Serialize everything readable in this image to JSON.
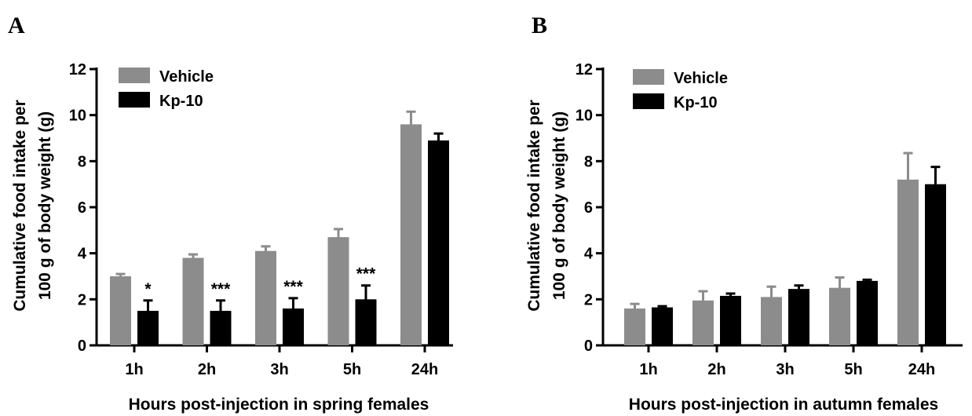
{
  "chart_data": [
    {
      "type": "bar",
      "panel_label": "A",
      "xlabel": "Hours post-injection in spring females",
      "ylabel_lines": [
        "Cumulative food intake per",
        "100 g of body weight (g)"
      ],
      "ylim": [
        0,
        12
      ],
      "yticks": [
        0,
        2,
        4,
        6,
        8,
        10,
        12
      ],
      "categories": [
        "1h",
        "2h",
        "3h",
        "5h",
        "24h"
      ],
      "legend_position": "top-left",
      "series": [
        {
          "name": "Vehicle",
          "color": "#8c8c8c",
          "values": [
            3.0,
            3.8,
            4.1,
            4.7,
            9.6
          ],
          "errors": [
            0.1,
            0.15,
            0.2,
            0.35,
            0.55
          ]
        },
        {
          "name": "Kp-10",
          "color": "#000000",
          "values": [
            1.5,
            1.5,
            1.6,
            2.0,
            8.9
          ],
          "errors": [
            0.45,
            0.45,
            0.45,
            0.6,
            0.3
          ]
        }
      ],
      "annotations": [
        "*",
        "***",
        "***",
        "***",
        ""
      ]
    },
    {
      "type": "bar",
      "panel_label": "B",
      "xlabel": "Hours post-injection in autumn females",
      "ylabel_lines": [
        "Cumulative food intake per",
        "100 g of body weight (g)"
      ],
      "ylim": [
        0,
        12
      ],
      "yticks": [
        0,
        2,
        4,
        6,
        8,
        10,
        12
      ],
      "categories": [
        "1h",
        "2h",
        "3h",
        "5h",
        "24h"
      ],
      "legend_position": "top-left",
      "series": [
        {
          "name": "Vehicle",
          "color": "#8c8c8c",
          "values": [
            1.6,
            1.95,
            2.1,
            2.5,
            7.2
          ],
          "errors": [
            0.2,
            0.4,
            0.45,
            0.45,
            1.15
          ]
        },
        {
          "name": "Kp-10",
          "color": "#000000",
          "values": [
            1.65,
            2.15,
            2.45,
            2.8,
            7.0
          ],
          "errors": [
            0.05,
            0.1,
            0.15,
            0.05,
            0.75
          ]
        }
      ],
      "annotations": [
        "",
        "",
        "",
        "",
        ""
      ]
    }
  ]
}
